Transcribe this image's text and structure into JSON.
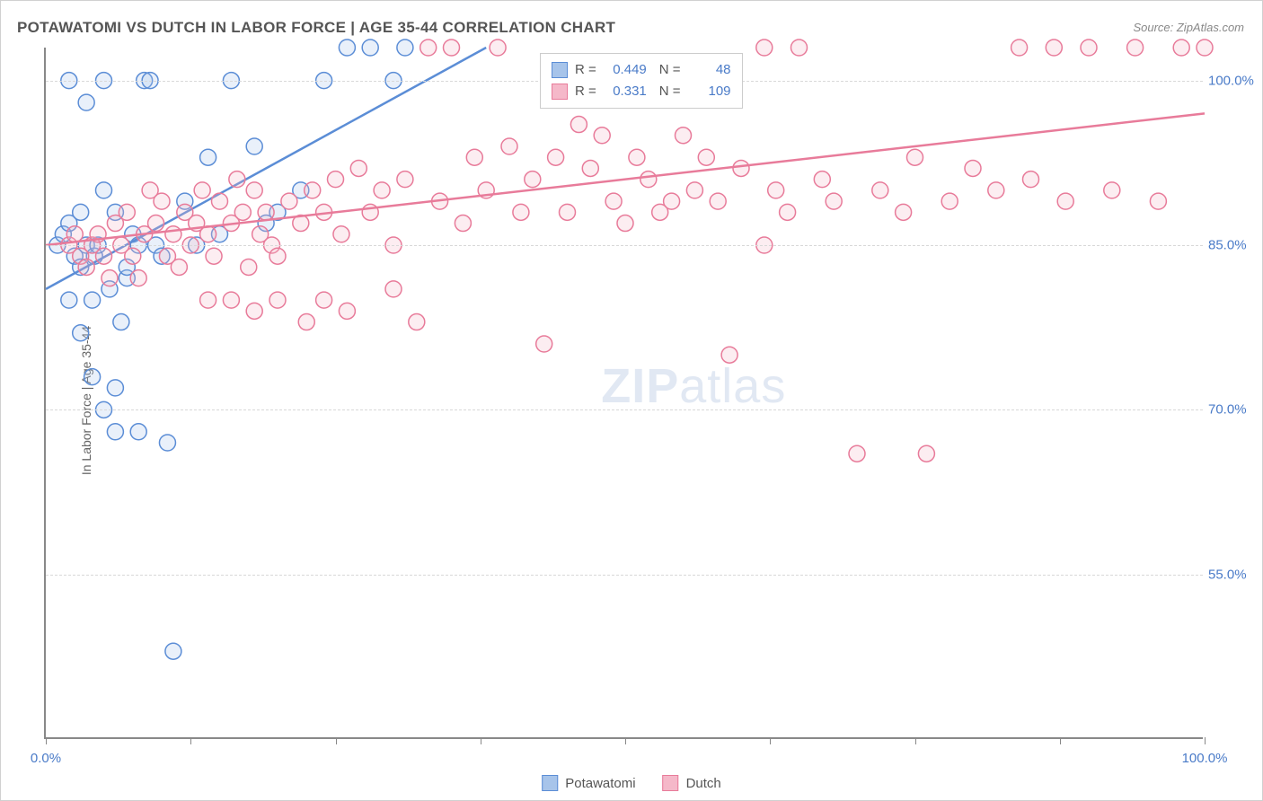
{
  "title": "POTAWATOMI VS DUTCH IN LABOR FORCE | AGE 35-44 CORRELATION CHART",
  "source": "Source: ZipAtlas.com",
  "y_axis_label": "In Labor Force | Age 35-44",
  "watermark_zip": "ZIP",
  "watermark_atlas": "atlas",
  "chart": {
    "type": "scatter",
    "xlim": [
      0,
      100
    ],
    "ylim": [
      40,
      103
    ],
    "y_ticks": [
      55,
      70,
      85,
      100
    ],
    "y_tick_labels": [
      "55.0%",
      "70.0%",
      "85.0%",
      "100.0%"
    ],
    "x_ticks": [
      0,
      12.5,
      25,
      37.5,
      50,
      62.5,
      75,
      87.5,
      100
    ],
    "x_tick_labels_shown": {
      "0": "0.0%",
      "100": "100.0%"
    },
    "background_color": "#ffffff",
    "grid_color": "#d8d8d8",
    "axis_color": "#888888",
    "marker_radius": 9,
    "marker_stroke_width": 1.5,
    "marker_fill_opacity": 0.25,
    "trend_line_width": 2.5,
    "series": [
      {
        "name": "Potawatomi",
        "color_stroke": "#5b8dd6",
        "color_fill": "#a7c4ea",
        "r_value": "0.449",
        "n_value": "48",
        "trend": {
          "x1": 0,
          "y1": 81,
          "x2": 38,
          "y2": 103
        },
        "points": [
          [
            1,
            85
          ],
          [
            1.5,
            86
          ],
          [
            2,
            100
          ],
          [
            2,
            87
          ],
          [
            2.5,
            84
          ],
          [
            3,
            88
          ],
          [
            3,
            83
          ],
          [
            3.5,
            98
          ],
          [
            3.5,
            85
          ],
          [
            4,
            80
          ],
          [
            4.2,
            84
          ],
          [
            4.5,
            85
          ],
          [
            5,
            100
          ],
          [
            5,
            90
          ],
          [
            5.5,
            81
          ],
          [
            6,
            68
          ],
          [
            6,
            88
          ],
          [
            6.5,
            78
          ],
          [
            7,
            82
          ],
          [
            7.5,
            86
          ],
          [
            8,
            68
          ],
          [
            8.5,
            100
          ],
          [
            9,
            100
          ],
          [
            9.5,
            85
          ],
          [
            10,
            84
          ],
          [
            10.5,
            67
          ],
          [
            11,
            48
          ],
          [
            12,
            89
          ],
          [
            13,
            85
          ],
          [
            14,
            93
          ],
          [
            15,
            86
          ],
          [
            16,
            100
          ],
          [
            18,
            94
          ],
          [
            19,
            87
          ],
          [
            20,
            88
          ],
          [
            22,
            90
          ],
          [
            24,
            100
          ],
          [
            26,
            103
          ],
          [
            28,
            103
          ],
          [
            30,
            100
          ],
          [
            31,
            103
          ],
          [
            4,
            73
          ],
          [
            5,
            70
          ],
          [
            3,
            77
          ],
          [
            2,
            80
          ],
          [
            6,
            72
          ],
          [
            7,
            83
          ],
          [
            8,
            85
          ]
        ]
      },
      {
        "name": "Dutch",
        "color_stroke": "#e87b9a",
        "color_fill": "#f5b8c9",
        "r_value": "0.331",
        "n_value": "109",
        "trend": {
          "x1": 0,
          "y1": 85,
          "x2": 100,
          "y2": 97
        },
        "points": [
          [
            2,
            85
          ],
          [
            2.5,
            86
          ],
          [
            3,
            84
          ],
          [
            3.5,
            83
          ],
          [
            4,
            85
          ],
          [
            4.5,
            86
          ],
          [
            5,
            84
          ],
          [
            5.5,
            82
          ],
          [
            6,
            87
          ],
          [
            6.5,
            85
          ],
          [
            7,
            88
          ],
          [
            7.5,
            84
          ],
          [
            8,
            82
          ],
          [
            8.5,
            86
          ],
          [
            9,
            90
          ],
          [
            9.5,
            87
          ],
          [
            10,
            89
          ],
          [
            10.5,
            84
          ],
          [
            11,
            86
          ],
          [
            11.5,
            83
          ],
          [
            12,
            88
          ],
          [
            12.5,
            85
          ],
          [
            13,
            87
          ],
          [
            13.5,
            90
          ],
          [
            14,
            86
          ],
          [
            14.5,
            84
          ],
          [
            15,
            89
          ],
          [
            16,
            87
          ],
          [
            16.5,
            91
          ],
          [
            17,
            88
          ],
          [
            17.5,
            83
          ],
          [
            18,
            90
          ],
          [
            18.5,
            86
          ],
          [
            19,
            88
          ],
          [
            19.5,
            85
          ],
          [
            20,
            84
          ],
          [
            21,
            89
          ],
          [
            22,
            87
          ],
          [
            22.5,
            78
          ],
          [
            23,
            90
          ],
          [
            24,
            88
          ],
          [
            25,
            91
          ],
          [
            25.5,
            86
          ],
          [
            26,
            79
          ],
          [
            27,
            92
          ],
          [
            28,
            88
          ],
          [
            29,
            90
          ],
          [
            30,
            85
          ],
          [
            31,
            91
          ],
          [
            32,
            78
          ],
          [
            33,
            103
          ],
          [
            34,
            89
          ],
          [
            35,
            103
          ],
          [
            36,
            87
          ],
          [
            37,
            93
          ],
          [
            38,
            90
          ],
          [
            39,
            103
          ],
          [
            40,
            94
          ],
          [
            41,
            88
          ],
          [
            42,
            91
          ],
          [
            43,
            76
          ],
          [
            44,
            93
          ],
          [
            45,
            88
          ],
          [
            46,
            96
          ],
          [
            47,
            92
          ],
          [
            48,
            95
          ],
          [
            49,
            89
          ],
          [
            50,
            87
          ],
          [
            51,
            93
          ],
          [
            52,
            91
          ],
          [
            53,
            88
          ],
          [
            54,
            89
          ],
          [
            55,
            95
          ],
          [
            56,
            90
          ],
          [
            57,
            93
          ],
          [
            58,
            89
          ],
          [
            59,
            75
          ],
          [
            60,
            92
          ],
          [
            62,
            103
          ],
          [
            63,
            90
          ],
          [
            64,
            88
          ],
          [
            65,
            103
          ],
          [
            67,
            91
          ],
          [
            68,
            89
          ],
          [
            70,
            66
          ],
          [
            72,
            90
          ],
          [
            74,
            88
          ],
          [
            75,
            93
          ],
          [
            76,
            66
          ],
          [
            78,
            89
          ],
          [
            80,
            92
          ],
          [
            82,
            90
          ],
          [
            84,
            103
          ],
          [
            85,
            91
          ],
          [
            87,
            103
          ],
          [
            88,
            89
          ],
          [
            90,
            103
          ],
          [
            92,
            90
          ],
          [
            94,
            103
          ],
          [
            96,
            89
          ],
          [
            98,
            103
          ],
          [
            100,
            103
          ],
          [
            14,
            80
          ],
          [
            16,
            80
          ],
          [
            24,
            80
          ],
          [
            62,
            85
          ],
          [
            30,
            81
          ],
          [
            20,
            80
          ],
          [
            18,
            79
          ]
        ]
      }
    ]
  },
  "legend": {
    "r_label": "R =",
    "n_label": "N ="
  },
  "bottom_legend": [
    {
      "label": "Potawatomi",
      "stroke": "#5b8dd6",
      "fill": "#a7c4ea"
    },
    {
      "label": "Dutch",
      "stroke": "#e87b9a",
      "fill": "#f5b8c9"
    }
  ]
}
